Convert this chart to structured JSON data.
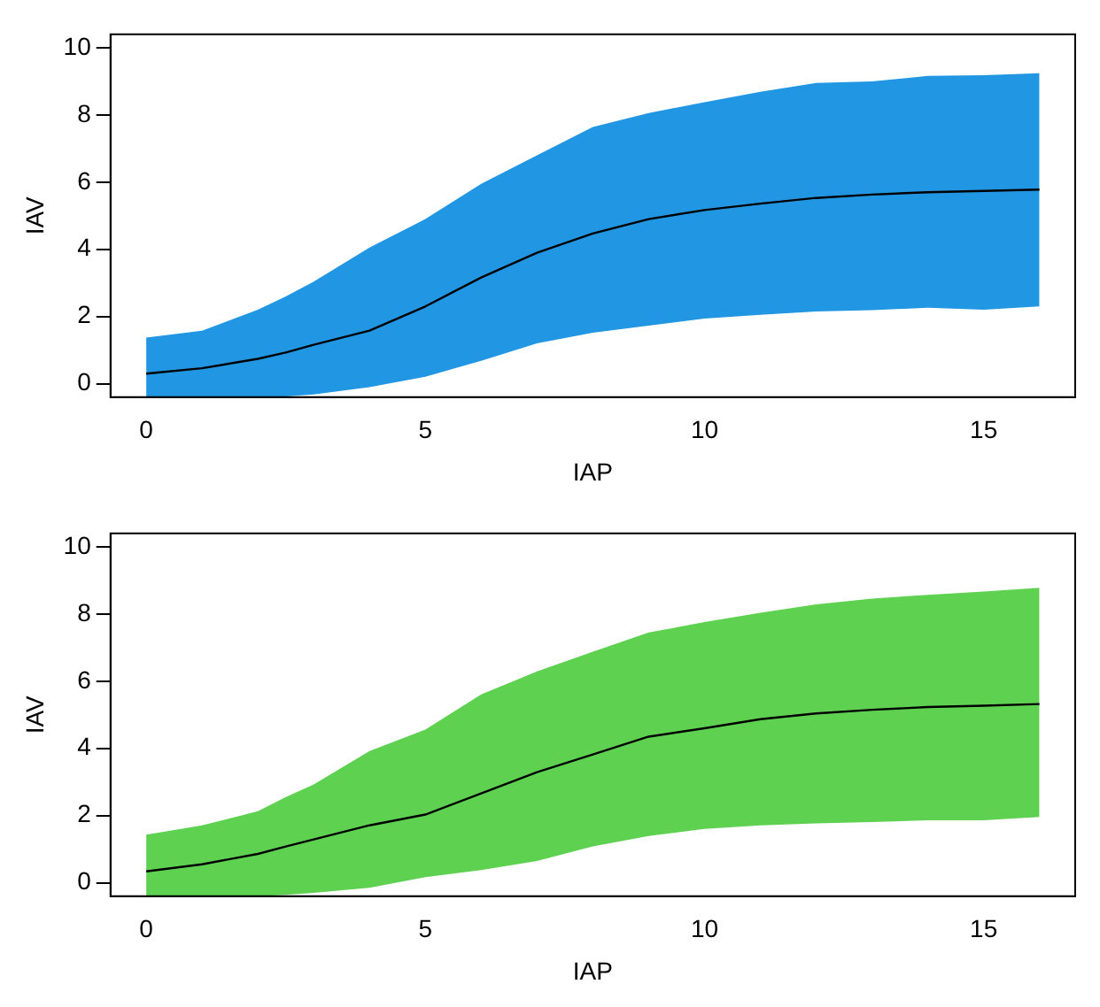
{
  "chart_data": [
    {
      "type": "line",
      "xlabel": "IAP",
      "ylabel": "IAV",
      "x": [
        0,
        1,
        2,
        2.5,
        3,
        4,
        5,
        6,
        7,
        8,
        9,
        10,
        11,
        12,
        13,
        14,
        15,
        16
      ],
      "xlim": [
        -0.64,
        16.64
      ],
      "xticks": [
        0,
        5,
        10,
        15
      ],
      "ylim": [
        -0.4,
        10.4
      ],
      "yticks": [
        0,
        2,
        4,
        6,
        8,
        10
      ],
      "grid": false,
      "legend": false,
      "marker": "none",
      "line_style": "solid",
      "series": [
        {
          "color": "#2196e3",
          "values": [
            null,
            null,
            null,
            null,
            null,
            null,
            null,
            null,
            null,
            null,
            null,
            null,
            null,
            null,
            null,
            null,
            null,
            null
          ],
          "lower": [
            -0.4,
            -0.4,
            -0.4,
            -0.38,
            -0.32,
            -0.1,
            0.21,
            0.68,
            1.2,
            1.52,
            1.73,
            1.94,
            2.05,
            2.15,
            2.19,
            2.26,
            2.2,
            2.3
          ],
          "upper": [
            1.37,
            1.58,
            2.2,
            2.6,
            3.04,
            4.05,
            4.9,
            5.95,
            6.8,
            7.64,
            8.06,
            8.38,
            8.69,
            8.95,
            9.0,
            9.16,
            9.18,
            9.24
          ]
        },
        {
          "color": "#000000",
          "values": [
            0.3,
            0.46,
            0.74,
            0.93,
            1.16,
            1.58,
            2.3,
            3.16,
            3.9,
            4.47,
            4.9,
            5.17,
            5.36,
            5.53,
            5.63,
            5.7,
            5.74,
            5.78
          ]
        }
      ]
    },
    {
      "type": "line",
      "xlabel": "IAP",
      "ylabel": "IAV",
      "x": [
        0,
        1,
        2,
        2.5,
        3,
        4,
        5,
        6,
        7,
        8,
        9,
        10,
        11,
        12,
        13,
        14,
        15,
        16
      ],
      "xlim": [
        -0.64,
        16.64
      ],
      "xticks": [
        0,
        5,
        10,
        15
      ],
      "ylim": [
        -0.4,
        10.4
      ],
      "yticks": [
        0,
        2,
        4,
        6,
        8,
        10
      ],
      "grid": false,
      "legend": false,
      "marker": "none",
      "line_style": "solid",
      "series": [
        {
          "color": "#5ed151",
          "values": [
            null,
            null,
            null,
            null,
            null,
            null,
            null,
            null,
            null,
            null,
            null,
            null,
            null,
            null,
            null,
            null,
            null,
            null
          ],
          "lower": [
            -0.4,
            -0.4,
            -0.4,
            -0.36,
            -0.3,
            -0.15,
            0.17,
            0.38,
            0.65,
            1.08,
            1.39,
            1.6,
            1.71,
            1.77,
            1.81,
            1.86,
            1.86,
            1.96
          ],
          "upper": [
            1.43,
            1.71,
            2.13,
            2.55,
            2.93,
            3.92,
            4.56,
            5.61,
            6.29,
            6.88,
            7.45,
            7.76,
            8.04,
            8.29,
            8.46,
            8.57,
            8.67,
            8.78
          ]
        },
        {
          "color": "#000000",
          "values": [
            0.34,
            0.55,
            0.86,
            1.08,
            1.29,
            1.71,
            2.03,
            2.66,
            3.29,
            3.82,
            4.35,
            4.6,
            4.87,
            5.04,
            5.15,
            5.23,
            5.27,
            5.32
          ]
        }
      ]
    }
  ]
}
